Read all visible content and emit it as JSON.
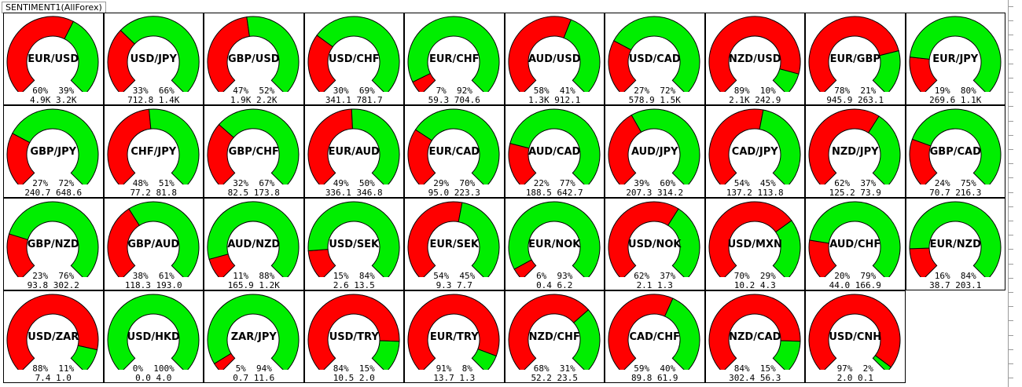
{
  "window_title": "SENTIMENT1(AllForex)",
  "colors": {
    "short": "#ff0000",
    "long": "#00ee00",
    "border": "#000000"
  },
  "gauges": [
    {
      "pair": "EUR/USD",
      "short_pct": "60%",
      "long_pct": "39%",
      "short_vol": "4.9K",
      "long_vol": "3.2K",
      "short_frac": 0.6
    },
    {
      "pair": "USD/JPY",
      "short_pct": "33%",
      "long_pct": "66%",
      "short_vol": "712.8",
      "long_vol": "1.4K",
      "short_frac": 0.33
    },
    {
      "pair": "GBP/USD",
      "short_pct": "47%",
      "long_pct": "52%",
      "short_vol": "1.9K",
      "long_vol": "2.2K",
      "short_frac": 0.47
    },
    {
      "pair": "USD/CHF",
      "short_pct": "30%",
      "long_pct": "69%",
      "short_vol": "341.1",
      "long_vol": "781.7",
      "short_frac": 0.3
    },
    {
      "pair": "EUR/CHF",
      "short_pct": "7%",
      "long_pct": "92%",
      "short_vol": "59.3",
      "long_vol": "704.6",
      "short_frac": 0.07
    },
    {
      "pair": "AUD/USD",
      "short_pct": "58%",
      "long_pct": "41%",
      "short_vol": "1.3K",
      "long_vol": "912.1",
      "short_frac": 0.58
    },
    {
      "pair": "USD/CAD",
      "short_pct": "27%",
      "long_pct": "72%",
      "short_vol": "578.9",
      "long_vol": "1.5K",
      "short_frac": 0.27
    },
    {
      "pair": "NZD/USD",
      "short_pct": "89%",
      "long_pct": "10%",
      "short_vol": "2.1K",
      "long_vol": "242.9",
      "short_frac": 0.89
    },
    {
      "pair": "EUR/GBP",
      "short_pct": "78%",
      "long_pct": "21%",
      "short_vol": "945.9",
      "long_vol": "263.1",
      "short_frac": 0.78
    },
    {
      "pair": "EUR/JPY",
      "short_pct": "19%",
      "long_pct": "80%",
      "short_vol": "269.6",
      "long_vol": "1.1K",
      "short_frac": 0.19
    },
    {
      "pair": "GBP/JPY",
      "short_pct": "27%",
      "long_pct": "72%",
      "short_vol": "240.7",
      "long_vol": "648.6",
      "short_frac": 0.27
    },
    {
      "pair": "CHF/JPY",
      "short_pct": "48%",
      "long_pct": "51%",
      "short_vol": "77.2",
      "long_vol": "81.8",
      "short_frac": 0.48
    },
    {
      "pair": "GBP/CHF",
      "short_pct": "32%",
      "long_pct": "67%",
      "short_vol": "82.5",
      "long_vol": "173.8",
      "short_frac": 0.32
    },
    {
      "pair": "EUR/AUD",
      "short_pct": "49%",
      "long_pct": "50%",
      "short_vol": "336.1",
      "long_vol": "346.8",
      "short_frac": 0.49
    },
    {
      "pair": "EUR/CAD",
      "short_pct": "29%",
      "long_pct": "70%",
      "short_vol": "95.0",
      "long_vol": "223.3",
      "short_frac": 0.29
    },
    {
      "pair": "AUD/CAD",
      "short_pct": "22%",
      "long_pct": "77%",
      "short_vol": "188.5",
      "long_vol": "642.7",
      "short_frac": 0.22
    },
    {
      "pair": "AUD/JPY",
      "short_pct": "39%",
      "long_pct": "60%",
      "short_vol": "207.3",
      "long_vol": "314.2",
      "short_frac": 0.39
    },
    {
      "pair": "CAD/JPY",
      "short_pct": "54%",
      "long_pct": "45%",
      "short_vol": "137.2",
      "long_vol": "113.8",
      "short_frac": 0.54
    },
    {
      "pair": "NZD/JPY",
      "short_pct": "62%",
      "long_pct": "37%",
      "short_vol": "125.2",
      "long_vol": "73.9",
      "short_frac": 0.62
    },
    {
      "pair": "GBP/CAD",
      "short_pct": "24%",
      "long_pct": "75%",
      "short_vol": "70.7",
      "long_vol": "216.3",
      "short_frac": 0.24
    },
    {
      "pair": "GBP/NZD",
      "short_pct": "23%",
      "long_pct": "76%",
      "short_vol": "93.8",
      "long_vol": "302.2",
      "short_frac": 0.23
    },
    {
      "pair": "GBP/AUD",
      "short_pct": "38%",
      "long_pct": "61%",
      "short_vol": "118.3",
      "long_vol": "193.0",
      "short_frac": 0.38
    },
    {
      "pair": "AUD/NZD",
      "short_pct": "11%",
      "long_pct": "88%",
      "short_vol": "165.9",
      "long_vol": "1.2K",
      "short_frac": 0.11
    },
    {
      "pair": "USD/SEK",
      "short_pct": "15%",
      "long_pct": "84%",
      "short_vol": "2.6",
      "long_vol": "13.5",
      "short_frac": 0.15
    },
    {
      "pair": "EUR/SEK",
      "short_pct": "54%",
      "long_pct": "45%",
      "short_vol": "9.3",
      "long_vol": "7.7",
      "short_frac": 0.54
    },
    {
      "pair": "EUR/NOK",
      "short_pct": "6%",
      "long_pct": "93%",
      "short_vol": "0.4",
      "long_vol": "6.2",
      "short_frac": 0.06
    },
    {
      "pair": "USD/NOK",
      "short_pct": "62%",
      "long_pct": "37%",
      "short_vol": "2.1",
      "long_vol": "1.3",
      "short_frac": 0.62
    },
    {
      "pair": "USD/MXN",
      "short_pct": "70%",
      "long_pct": "29%",
      "short_vol": "10.2",
      "long_vol": "4.3",
      "short_frac": 0.7
    },
    {
      "pair": "AUD/CHF",
      "short_pct": "20%",
      "long_pct": "79%",
      "short_vol": "44.0",
      "long_vol": "166.9",
      "short_frac": 0.2
    },
    {
      "pair": "EUR/NZD",
      "short_pct": "16%",
      "long_pct": "84%",
      "short_vol": "38.7",
      "long_vol": "203.1",
      "short_frac": 0.16
    },
    {
      "pair": "USD/ZAR",
      "short_pct": "88%",
      "long_pct": "11%",
      "short_vol": "7.4",
      "long_vol": "1.0",
      "short_frac": 0.88
    },
    {
      "pair": "USD/HKD",
      "short_pct": "0%",
      "long_pct": "100%",
      "short_vol": "0.0",
      "long_vol": "4.0",
      "short_frac": 0.0
    },
    {
      "pair": "ZAR/JPY",
      "short_pct": "5%",
      "long_pct": "94%",
      "short_vol": "0.7",
      "long_vol": "11.6",
      "short_frac": 0.05
    },
    {
      "pair": "USD/TRY",
      "short_pct": "84%",
      "long_pct": "15%",
      "short_vol": "10.5",
      "long_vol": "2.0",
      "short_frac": 0.84
    },
    {
      "pair": "EUR/TRY",
      "short_pct": "91%",
      "long_pct": "8%",
      "short_vol": "13.7",
      "long_vol": "1.3",
      "short_frac": 0.91
    },
    {
      "pair": "NZD/CHF",
      "short_pct": "68%",
      "long_pct": "31%",
      "short_vol": "52.2",
      "long_vol": "23.5",
      "short_frac": 0.68
    },
    {
      "pair": "CAD/CHF",
      "short_pct": "59%",
      "long_pct": "40%",
      "short_vol": "89.8",
      "long_vol": "61.9",
      "short_frac": 0.59
    },
    {
      "pair": "NZD/CAD",
      "short_pct": "84%",
      "long_pct": "15%",
      "short_vol": "302.4",
      "long_vol": "56.3",
      "short_frac": 0.84
    },
    {
      "pair": "USD/CNH",
      "short_pct": "97%",
      "long_pct": "2%",
      "short_vol": "2.0",
      "long_vol": "0.1",
      "short_frac": 0.97
    }
  ]
}
